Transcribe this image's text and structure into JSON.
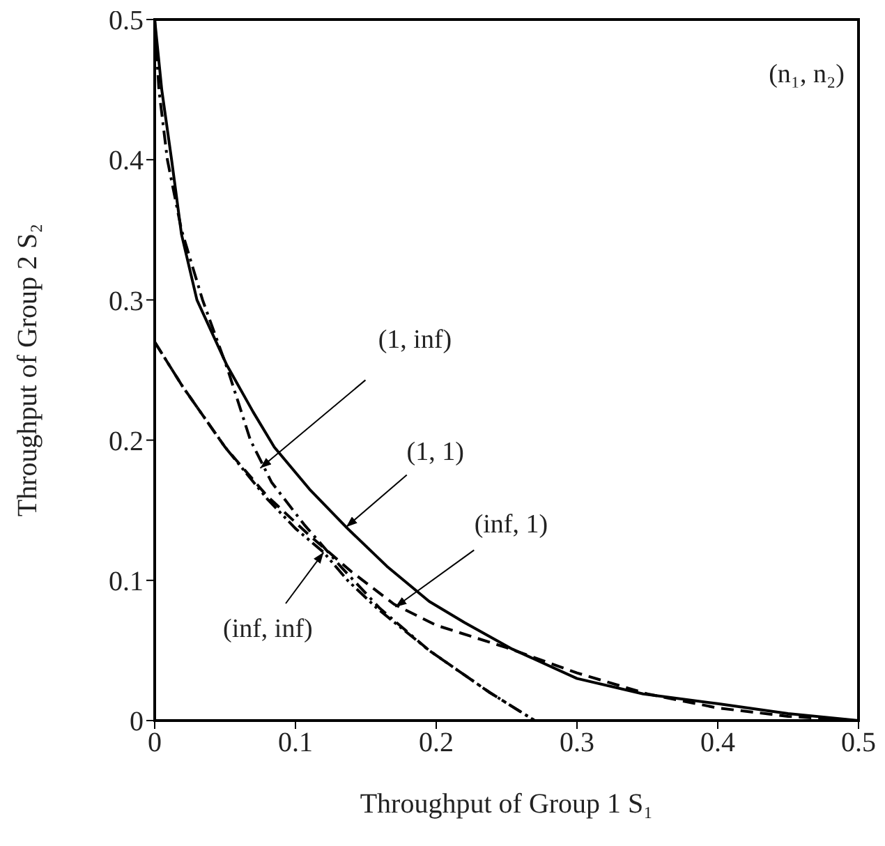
{
  "chart_data": {
    "type": "line",
    "xlabel": "Throughput of Group 1  S₁",
    "ylabel": "Throughput of Group 2  S₂",
    "xlim": [
      0,
      0.5
    ],
    "ylim": [
      0,
      0.5
    ],
    "xticks": [
      0,
      0.1,
      0.2,
      0.3,
      0.4,
      0.5
    ],
    "yticks": [
      0,
      0.1,
      0.2,
      0.3,
      0.4,
      0.5
    ],
    "marker": "none",
    "series": [
      {
        "color": "#000000",
        "line_style": "solid",
        "x": [
          0,
          0.005,
          0.012,
          0.019,
          0.03,
          0.051,
          0.07,
          0.085,
          0.11,
          0.137,
          0.165,
          0.195,
          0.22,
          0.254,
          0.3,
          0.347,
          0.4,
          0.45,
          0.5
        ],
        "values": [
          0.5,
          0.45,
          0.4,
          0.347,
          0.3,
          0.254,
          0.22,
          0.195,
          0.165,
          0.137,
          0.11,
          0.085,
          0.07,
          0.051,
          0.03,
          0.019,
          0.012,
          0.005,
          0
        ]
      },
      {
        "color": "#000000",
        "line_style": "dashed",
        "x": [
          0,
          0.02,
          0.05,
          0.08,
          0.11,
          0.14,
          0.17,
          0.2,
          0.25,
          0.3,
          0.35,
          0.4,
          0.45,
          0.5
        ],
        "values": [
          0.27,
          0.238,
          0.195,
          0.16,
          0.132,
          0.106,
          0.083,
          0.068,
          0.052,
          0.034,
          0.019,
          0.009,
          0.003,
          0
        ]
      },
      {
        "color": "#000000",
        "line_style": "dashdot",
        "x": [
          0,
          0.003,
          0.009,
          0.019,
          0.034,
          0.052,
          0.068,
          0.083,
          0.106,
          0.132,
          0.16,
          0.195,
          0.238,
          0.27
        ],
        "values": [
          0.5,
          0.45,
          0.4,
          0.35,
          0.3,
          0.25,
          0.2,
          0.17,
          0.14,
          0.11,
          0.08,
          0.05,
          0.02,
          0
        ]
      },
      {
        "color": "#000000",
        "line_style": "dashdotdot",
        "x": [
          0,
          0.02,
          0.05,
          0.08,
          0.1,
          0.12,
          0.137,
          0.158,
          0.195,
          0.238,
          0.27
        ],
        "values": [
          0.27,
          0.238,
          0.195,
          0.158,
          0.137,
          0.12,
          0.1,
          0.08,
          0.05,
          0.02,
          0
        ]
      }
    ],
    "annotations": [
      "(n₁, n₂)",
      {
        "text": "(1, inf)",
        "x": 0.075,
        "y": 0.18
      },
      {
        "text": "(1, 1)",
        "x": 0.136,
        "y": 0.138
      },
      {
        "text": "(inf, 1)",
        "x": 0.171,
        "y": 0.081
      },
      {
        "text": "(inf, inf)",
        "x": 0.12,
        "y": 0.12
      }
    ]
  }
}
